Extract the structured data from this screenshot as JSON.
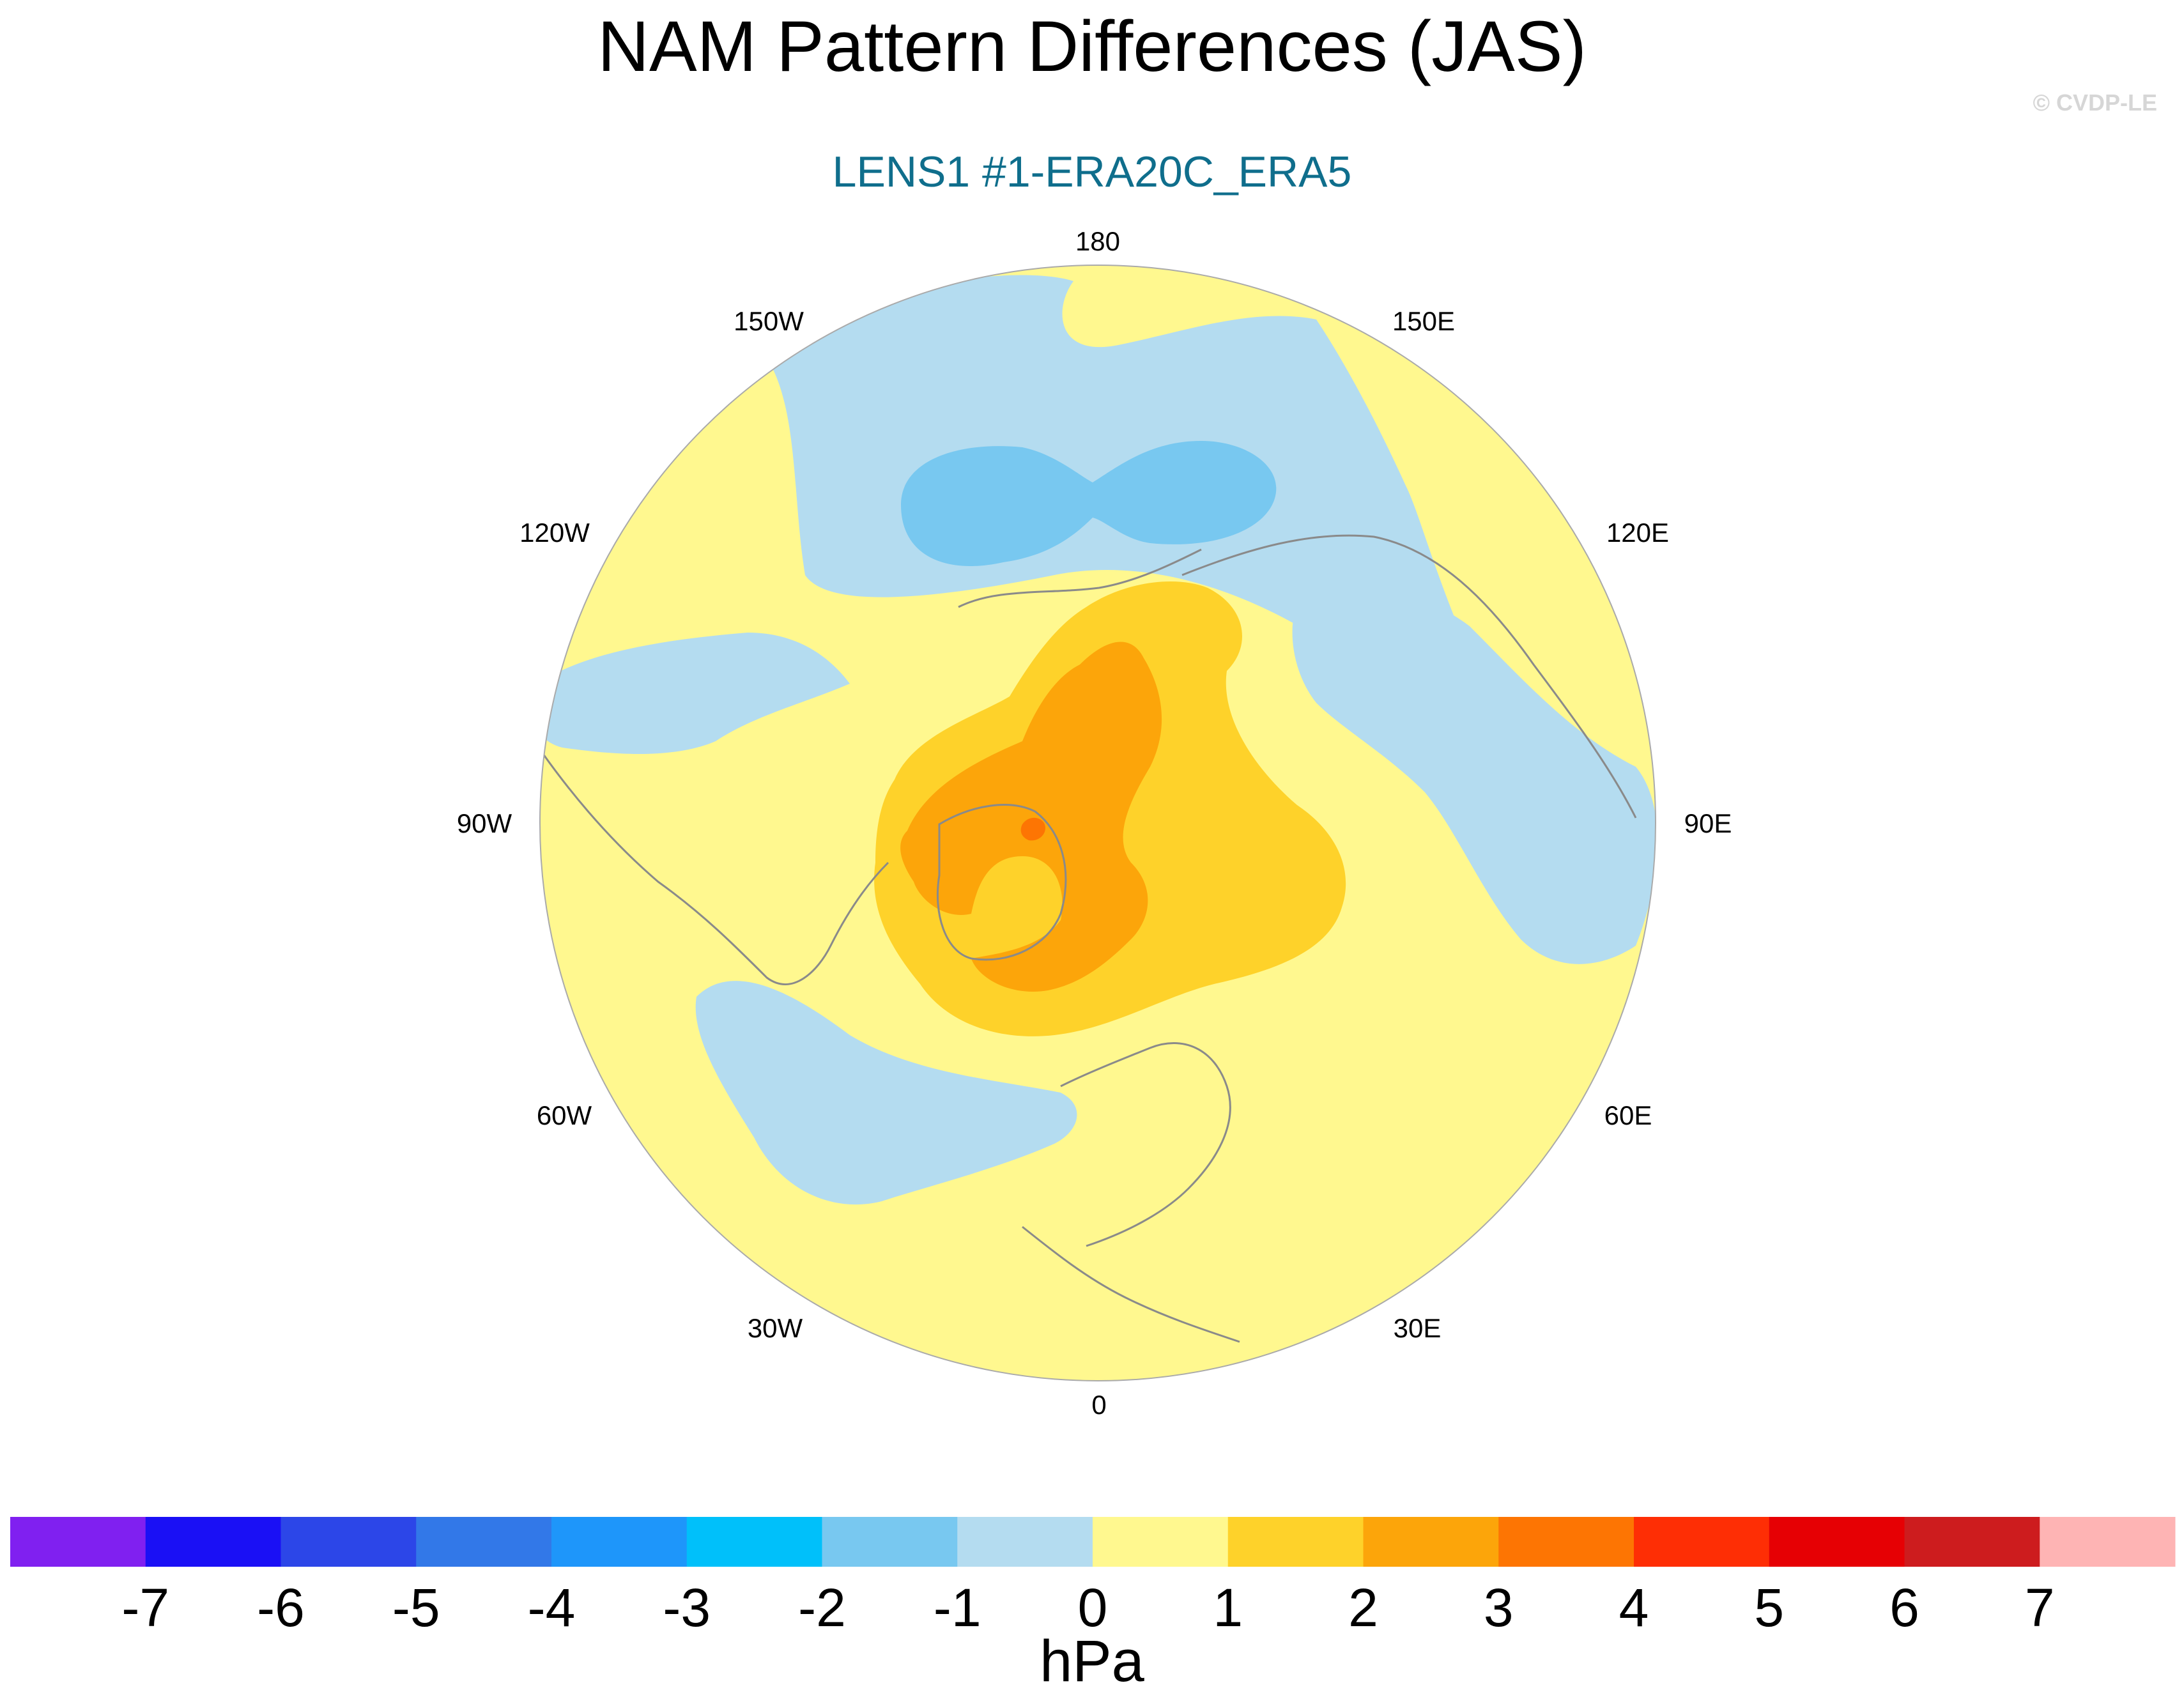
{
  "title": "NAM Pattern Differences (JAS)",
  "subtitle": "LENS1 #1-ERA20C_ERA5",
  "watermark": "© CVDP-LE",
  "colors": {
    "subtitle": "#0f6e8c"
  },
  "map": {
    "projection": "north-polar-stereographic",
    "longitude_labels": [
      "180",
      "150E",
      "120E",
      "90E",
      "60E",
      "30E",
      "0",
      "30W",
      "60W",
      "90W",
      "120W",
      "150W"
    ],
    "features": [
      {
        "name": "pacific-negative-band",
        "level": "-1 to 0"
      },
      {
        "name": "pacific-low-center",
        "level": "-2 to -1"
      },
      {
        "name": "atlantic-negative-band",
        "level": "-1 to 0"
      },
      {
        "name": "hudson-bay-negative-patch",
        "level": "-1 to 0"
      },
      {
        "name": "arctic-positive-ring",
        "level": "1 to 2"
      },
      {
        "name": "arctic-positive-core",
        "level": "2 to 3"
      },
      {
        "name": "arctic-positive-max",
        "level": "3 to 4"
      },
      {
        "name": "siberia-negative-patch",
        "level": "-1 to 0"
      }
    ]
  },
  "colorbar": {
    "unit": "hPa",
    "tick_labels": [
      "-7",
      "-6",
      "-5",
      "-4",
      "-3",
      "-2",
      "-1",
      "0",
      "1",
      "2",
      "3",
      "4",
      "5",
      "6",
      "7"
    ],
    "bins": [
      "<-7",
      "-7 to -6",
      "-6 to -5",
      "-5 to -4",
      "-4 to -3",
      "-3 to -2",
      "-2 to -1",
      "-1 to 0",
      "0 to 1",
      "1 to 2",
      "2 to 3",
      "3 to 4",
      "4 to 5",
      "5 to 6",
      "6 to 7",
      ">7"
    ],
    "colors": [
      "#8020f0",
      "#1a10f5",
      "#2c46e8",
      "#3278e8",
      "#1e96fa",
      "#00c0fa",
      "#78c8f0",
      "#b4dcf0",
      "#fff88f",
      "#fed22a",
      "#fca50a",
      "#fd7503",
      "#fe2e05",
      "#e60004",
      "#cd1c1e",
      "#feb4b4"
    ]
  }
}
